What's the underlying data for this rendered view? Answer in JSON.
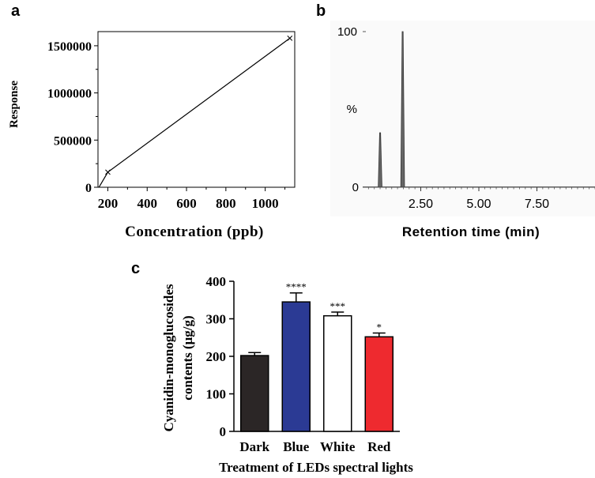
{
  "chart_data": [
    {
      "panel_label": "a",
      "type": "line",
      "xlabel": "Concentration (ppb)",
      "ylabel": "Response",
      "xlim": [
        150,
        1150
      ],
      "ylim": [
        0,
        1650000
      ],
      "x_ticks": [
        200,
        400,
        600,
        800,
        1000
      ],
      "x_tick_labels": [
        "200",
        "400",
        "600",
        "800",
        "1000"
      ],
      "y_ticks": [
        0,
        500000,
        1000000,
        1500000
      ],
      "y_tick_labels": [
        "0",
        "500000",
        "1000000",
        "1500000"
      ],
      "x": [
        155,
        200,
        1125
      ],
      "y": [
        0,
        160000,
        1580000
      ],
      "markers": [
        {
          "x": 200,
          "y": 160000
        },
        {
          "x": 1125,
          "y": 1580000
        }
      ]
    },
    {
      "panel_label": "b",
      "type": "line",
      "xlabel": "Retention time (min)",
      "ylabel": "%",
      "y_top_label": "100",
      "y_zero_label": "0",
      "xlim": [
        0,
        10
      ],
      "ylim": [
        0,
        100
      ],
      "x_tick_labels": [
        "2.50",
        "5.00",
        "7.50"
      ],
      "x_ticks": [
        2.5,
        5.0,
        7.5
      ],
      "peaks": [
        {
          "time": 0.75,
          "height": 35
        },
        {
          "time": 1.72,
          "height": 100
        }
      ]
    },
    {
      "panel_label": "c",
      "type": "bar",
      "xlabel": "Treatment of LEDs spectral lights",
      "ylabel_line1": "Cyanidin-monoglucosides",
      "ylabel_line2": "contents (μg/g)",
      "ylim": [
        0,
        400
      ],
      "y_ticks": [
        0,
        100,
        200,
        300,
        400
      ],
      "y_tick_labels": [
        "0",
        "100",
        "200",
        "300",
        "400"
      ],
      "categories": [
        "Dark",
        "Blue",
        "White",
        "Red"
      ],
      "values": [
        202,
        345,
        308,
        252
      ],
      "errors": [
        8,
        24,
        10,
        10
      ],
      "significance": [
        "",
        "****",
        "***",
        "*"
      ],
      "colors": [
        "#2b2626",
        "#2b3a94",
        "#ffffff",
        "#ee2a2f"
      ]
    }
  ]
}
